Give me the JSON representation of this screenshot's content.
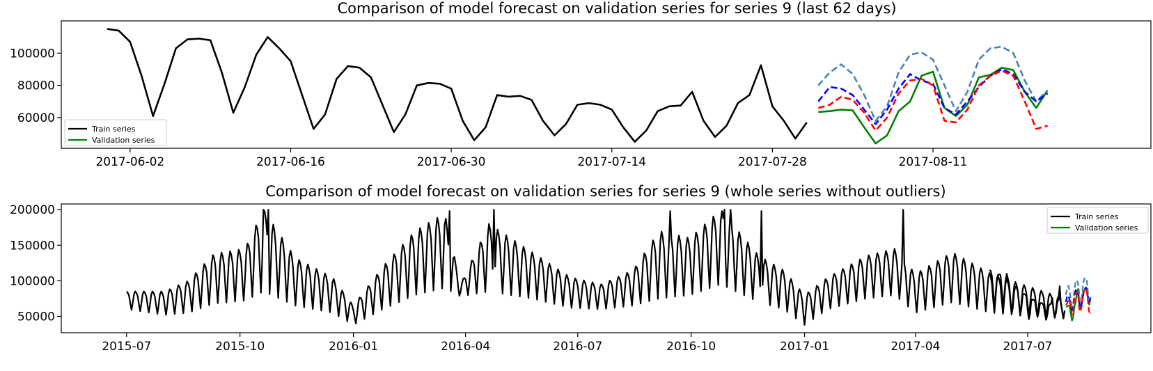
{
  "chart_data": [
    {
      "type": "line",
      "title": "Comparison of model forecast on validation series for series 9 (last 62 days)",
      "xlabel": "",
      "ylabel": "",
      "x_type": "date",
      "xlim": [
        "2017-05-27",
        "2017-08-30"
      ],
      "ylim": [
        41000,
        120000
      ],
      "x_ticks": [
        "2017-06-02",
        "2017-06-16",
        "2017-06-30",
        "2017-07-14",
        "2017-07-28",
        "2017-08-11"
      ],
      "y_ticks": [
        60000,
        80000,
        100000
      ],
      "grid": false,
      "legend": {
        "position": "lower-left",
        "entries": [
          "Train series",
          "Validation series"
        ]
      },
      "series": [
        {
          "name": "Train series",
          "color": "#000000",
          "style": "solid",
          "start": "2017-05-31",
          "values": [
            115000,
            114000,
            107000,
            86000,
            61000,
            81000,
            103000,
            108500,
            109000,
            108000,
            88000,
            63000,
            79000,
            99000,
            110000,
            103000,
            95000,
            74000,
            53000,
            62000,
            84000,
            92000,
            91000,
            85000,
            68000,
            51000,
            62000,
            80000,
            81500,
            81000,
            78000,
            58000,
            46000,
            54000,
            74000,
            73000,
            73500,
            71000,
            58000,
            49000,
            56000,
            68000,
            69000,
            68000,
            65000,
            54000,
            45000,
            52000,
            64000,
            67000,
            67500,
            76000,
            58000,
            48000,
            55000,
            69000,
            74000,
            92500,
            67000,
            58000,
            47000,
            57000
          ]
        },
        {
          "name": "Validation series",
          "color": "#008000",
          "style": "solid",
          "start": "2017-08-01",
          "values": [
            63500,
            64000,
            65000,
            64500,
            54000,
            44000,
            49000,
            64000,
            70000,
            86000,
            88500,
            66000,
            61000,
            68000,
            85000,
            86500,
            91000,
            89500,
            76000,
            66000,
            77000
          ]
        },
        {
          "name": "",
          "color": "#4682b4",
          "style": "dashed",
          "start": "2017-08-01",
          "values": [
            80000,
            88000,
            93000,
            87000,
            74000,
            58000,
            67000,
            88000,
            99000,
            100500,
            96000,
            80000,
            64000,
            76000,
            96000,
            103000,
            104000,
            100000,
            83000,
            70000,
            77000
          ]
        },
        {
          "name": "",
          "color": "#0000ff",
          "style": "dashed",
          "start": "2017-08-01",
          "values": [
            70000,
            79000,
            78000,
            74000,
            65000,
            56000,
            65000,
            78000,
            87000,
            83000,
            81000,
            66000,
            62000,
            70000,
            79000,
            86000,
            90000,
            87000,
            76000,
            70000,
            75000
          ]
        },
        {
          "name": "",
          "color": "#ff0000",
          "style": "dashed",
          "start": "2017-08-01",
          "values": [
            66000,
            68000,
            73000,
            71000,
            63000,
            52000,
            60000,
            75000,
            83000,
            84000,
            80000,
            58000,
            57000,
            65000,
            80000,
            86000,
            89000,
            86000,
            70000,
            53000,
            55000
          ]
        }
      ]
    },
    {
      "type": "line",
      "title": "Comparison of model forecast on validation series for series 9 (whole series without outliers)",
      "xlabel": "",
      "ylabel": "",
      "x_type": "date",
      "xlim": [
        "2015-05-09",
        "2017-10-09"
      ],
      "ylim": [
        27000,
        208000
      ],
      "x_ticks": [
        "2015-07",
        "2015-10",
        "2016-01",
        "2016-04",
        "2016-07",
        "2016-10",
        "2017-01",
        "2017-04",
        "2017-07"
      ],
      "y_ticks": [
        50000,
        100000,
        150000,
        200000
      ],
      "grid": false,
      "legend": {
        "position": "top-right",
        "entries": [
          "Train series",
          "Validation series"
        ]
      },
      "train_weekly": {
        "name": "Train series",
        "color": "#000000",
        "start": "2015-07-01",
        "end": "2017-07-31",
        "period_days": 7,
        "knots": [
          {
            "date": "2015-07-01",
            "peak": 85000,
            "trough": 60000
          },
          {
            "date": "2015-08-01",
            "peak": 85000,
            "trough": 52000
          },
          {
            "date": "2015-08-20",
            "peak": 100000,
            "trough": 55000
          },
          {
            "date": "2015-09-10",
            "peak": 138000,
            "trough": 68000
          },
          {
            "date": "2015-10-05",
            "peak": 145000,
            "trough": 72000
          },
          {
            "date": "2015-10-20",
            "peak": 200000,
            "trough": 85000
          },
          {
            "date": "2015-11-15",
            "peak": 132000,
            "trough": 65000
          },
          {
            "date": "2015-12-15",
            "peak": 105000,
            "trough": 55000
          },
          {
            "date": "2016-01-01",
            "peak": 65000,
            "trough": 38000
          },
          {
            "date": "2016-01-25",
            "peak": 120000,
            "trough": 60000
          },
          {
            "date": "2016-02-20",
            "peak": 170000,
            "trough": 80000
          },
          {
            "date": "2016-03-15",
            "peak": 195000,
            "trough": 90000
          },
          {
            "date": "2016-03-28",
            "peak": 95000,
            "trough": 78000
          },
          {
            "date": "2016-04-20",
            "peak": 180000,
            "trough": 85000
          },
          {
            "date": "2016-05-25",
            "peak": 140000,
            "trough": 75000
          },
          {
            "date": "2016-06-25",
            "peak": 105000,
            "trough": 62000
          },
          {
            "date": "2016-07-20",
            "peak": 95000,
            "trough": 60000
          },
          {
            "date": "2016-08-15",
            "peak": 115000,
            "trough": 65000
          },
          {
            "date": "2016-09-05",
            "peak": 170000,
            "trough": 75000
          },
          {
            "date": "2016-09-30",
            "peak": 160000,
            "trough": 80000
          },
          {
            "date": "2016-10-25",
            "peak": 200000,
            "trough": 95000
          },
          {
            "date": "2016-11-25",
            "peak": 135000,
            "trough": 70000
          },
          {
            "date": "2016-12-15",
            "peak": 115000,
            "trough": 60000
          },
          {
            "date": "2017-01-01",
            "peak": 80000,
            "trough": 38000
          },
          {
            "date": "2017-01-20",
            "peak": 105000,
            "trough": 60000
          },
          {
            "date": "2017-02-20",
            "peak": 135000,
            "trough": 75000
          },
          {
            "date": "2017-03-15",
            "peak": 145000,
            "trough": 80000
          },
          {
            "date": "2017-04-01",
            "peak": 110000,
            "trough": 55000
          },
          {
            "date": "2017-05-01",
            "peak": 140000,
            "trough": 70000
          },
          {
            "date": "2017-06-01",
            "peak": 110000,
            "trough": 55000
          },
          {
            "date": "2017-07-31",
            "peak": 75000,
            "trough": 47000
          }
        ],
        "spikes": [
          {
            "date": "2015-10-20",
            "value": 200000
          },
          {
            "date": "2015-10-24",
            "value": 200000
          },
          {
            "date": "2016-03-19",
            "value": 198000
          },
          {
            "date": "2016-04-24",
            "value": 200000
          },
          {
            "date": "2016-09-14",
            "value": 198000
          },
          {
            "date": "2016-10-28",
            "value": 200000
          },
          {
            "date": "2016-11-02",
            "value": 200000
          },
          {
            "date": "2016-11-27",
            "value": 198000
          },
          {
            "date": "2017-03-22",
            "value": 200000
          }
        ]
      },
      "forecast_ref": "chart_data.0"
    }
  ]
}
